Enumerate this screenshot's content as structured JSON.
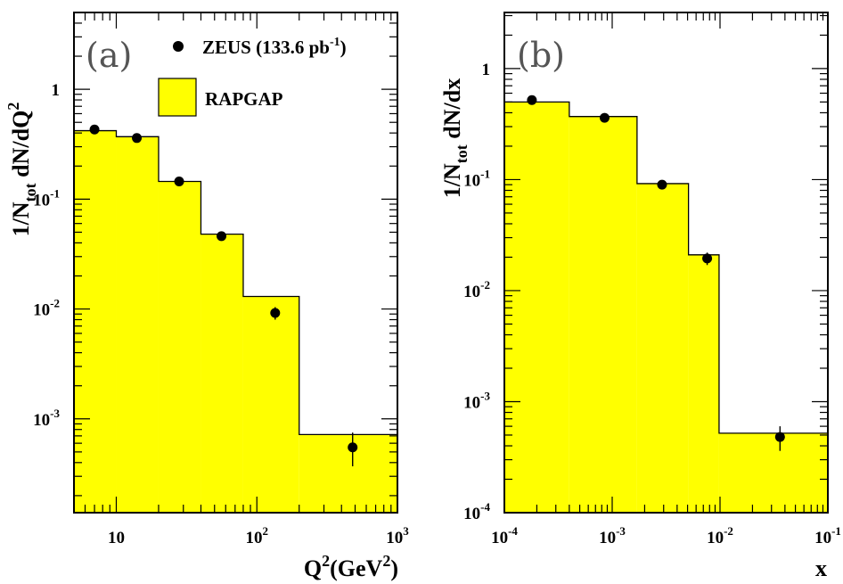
{
  "chart_data": [
    {
      "type": "bar",
      "panel_label": "(a)",
      "xscale": "log",
      "yscale": "log",
      "xlim": [
        5,
        1000
      ],
      "ylim": [
        0.00014,
        5
      ],
      "ylabel_parts": {
        "a": "1/N",
        "sub": "tot",
        "b": " dN/dQ",
        "sup": "2"
      },
      "xlabel_parts": {
        "a": "Q",
        "sup1": "2",
        "b": "(GeV",
        "sup2": "2",
        "c": ")"
      },
      "xticks": [
        {
          "base": "10",
          "exp": "",
          "value": 10
        },
        {
          "base": "10",
          "exp": "2",
          "value": 100
        },
        {
          "base": "10",
          "exp": "3",
          "value": 1000
        }
      ],
      "yticks": [
        {
          "base": "1",
          "exp": "",
          "value": 1
        },
        {
          "base": "10",
          "exp": "-1",
          "value": 0.1
        },
        {
          "base": "10",
          "exp": "-2",
          "value": 0.01
        },
        {
          "base": "10",
          "exp": "-3",
          "value": 0.001
        }
      ],
      "legend": {
        "data_label": {
          "a": "ZEUS (133.6 pb",
          "sup": "-1",
          "b": ")"
        },
        "mc_label": "RAPGAP",
        "position": "top-right"
      },
      "histogram": [
        {
          "x_low": 5,
          "x_high": 10,
          "value": 0.42
        },
        {
          "x_low": 10,
          "x_high": 20,
          "value": 0.37
        },
        {
          "x_low": 20,
          "x_high": 40,
          "value": 0.145
        },
        {
          "x_low": 40,
          "x_high": 80,
          "value": 0.048
        },
        {
          "x_low": 80,
          "x_high": 200,
          "value": 0.013
        },
        {
          "x_low": 200,
          "x_high": 1000,
          "value": 0.00072
        }
      ],
      "points": [
        {
          "x": 7,
          "y": 0.43,
          "y_err_low": 0.015,
          "y_err_high": 0.015
        },
        {
          "x": 14,
          "y": 0.36,
          "y_err_low": 0.012,
          "y_err_high": 0.012
        },
        {
          "x": 28,
          "y": 0.145,
          "y_err_low": 0.006,
          "y_err_high": 0.006
        },
        {
          "x": 56,
          "y": 0.046,
          "y_err_low": 0.002,
          "y_err_high": 0.002
        },
        {
          "x": 135,
          "y": 0.0092,
          "y_err_low": 0.0012,
          "y_err_high": 0.0012
        },
        {
          "x": 480,
          "y": 0.00055,
          "y_err_low": 0.00018,
          "y_err_high": 0.0002
        }
      ],
      "colors": {
        "histogram_fill": "#ffff00",
        "histogram_line": "#000000",
        "points": "#000000"
      }
    },
    {
      "type": "bar",
      "panel_label": "(b)",
      "xscale": "log",
      "yscale": "log",
      "xlim": [
        0.0001,
        0.1
      ],
      "ylim": [
        0.0001,
        3.2
      ],
      "ylabel_parts": {
        "a": "1/N",
        "sub": "tot",
        "b": " dN/dx"
      },
      "xlabel": "x",
      "xticks": [
        {
          "base": "10",
          "exp": "-4",
          "value": 0.0001
        },
        {
          "base": "10",
          "exp": "-3",
          "value": 0.001
        },
        {
          "base": "10",
          "exp": "-2",
          "value": 0.01
        },
        {
          "base": "10",
          "exp": "-1",
          "value": 0.1
        }
      ],
      "yticks": [
        {
          "base": "1",
          "exp": "",
          "value": 1
        },
        {
          "base": "10",
          "exp": "-1",
          "value": 0.1
        },
        {
          "base": "10",
          "exp": "-2",
          "value": 0.01
        },
        {
          "base": "10",
          "exp": "-3",
          "value": 0.001
        },
        {
          "base": "10",
          "exp": "-4",
          "value": 0.0001
        }
      ],
      "histogram": [
        {
          "x_low": 0.0001,
          "x_high": 0.0004,
          "value": 0.5
        },
        {
          "x_low": 0.0004,
          "x_high": 0.0017,
          "value": 0.37
        },
        {
          "x_low": 0.0017,
          "x_high": 0.0051,
          "value": 0.092
        },
        {
          "x_low": 0.0051,
          "x_high": 0.0098,
          "value": 0.021
        },
        {
          "x_low": 0.0098,
          "x_high": 0.1,
          "value": 0.00052
        }
      ],
      "points": [
        {
          "x": 0.00018,
          "y": 0.52,
          "y_err_low": 0.02,
          "y_err_high": 0.02
        },
        {
          "x": 0.00085,
          "y": 0.36,
          "y_err_low": 0.014,
          "y_err_high": 0.014
        },
        {
          "x": 0.0029,
          "y": 0.09,
          "y_err_low": 0.004,
          "y_err_high": 0.004
        },
        {
          "x": 0.0076,
          "y": 0.0195,
          "y_err_low": 0.0025,
          "y_err_high": 0.0025
        },
        {
          "x": 0.036,
          "y": 0.00048,
          "y_err_low": 0.00012,
          "y_err_high": 0.00012
        }
      ],
      "colors": {
        "histogram_fill": "#ffff00",
        "histogram_line": "#000000",
        "points": "#000000"
      }
    }
  ]
}
